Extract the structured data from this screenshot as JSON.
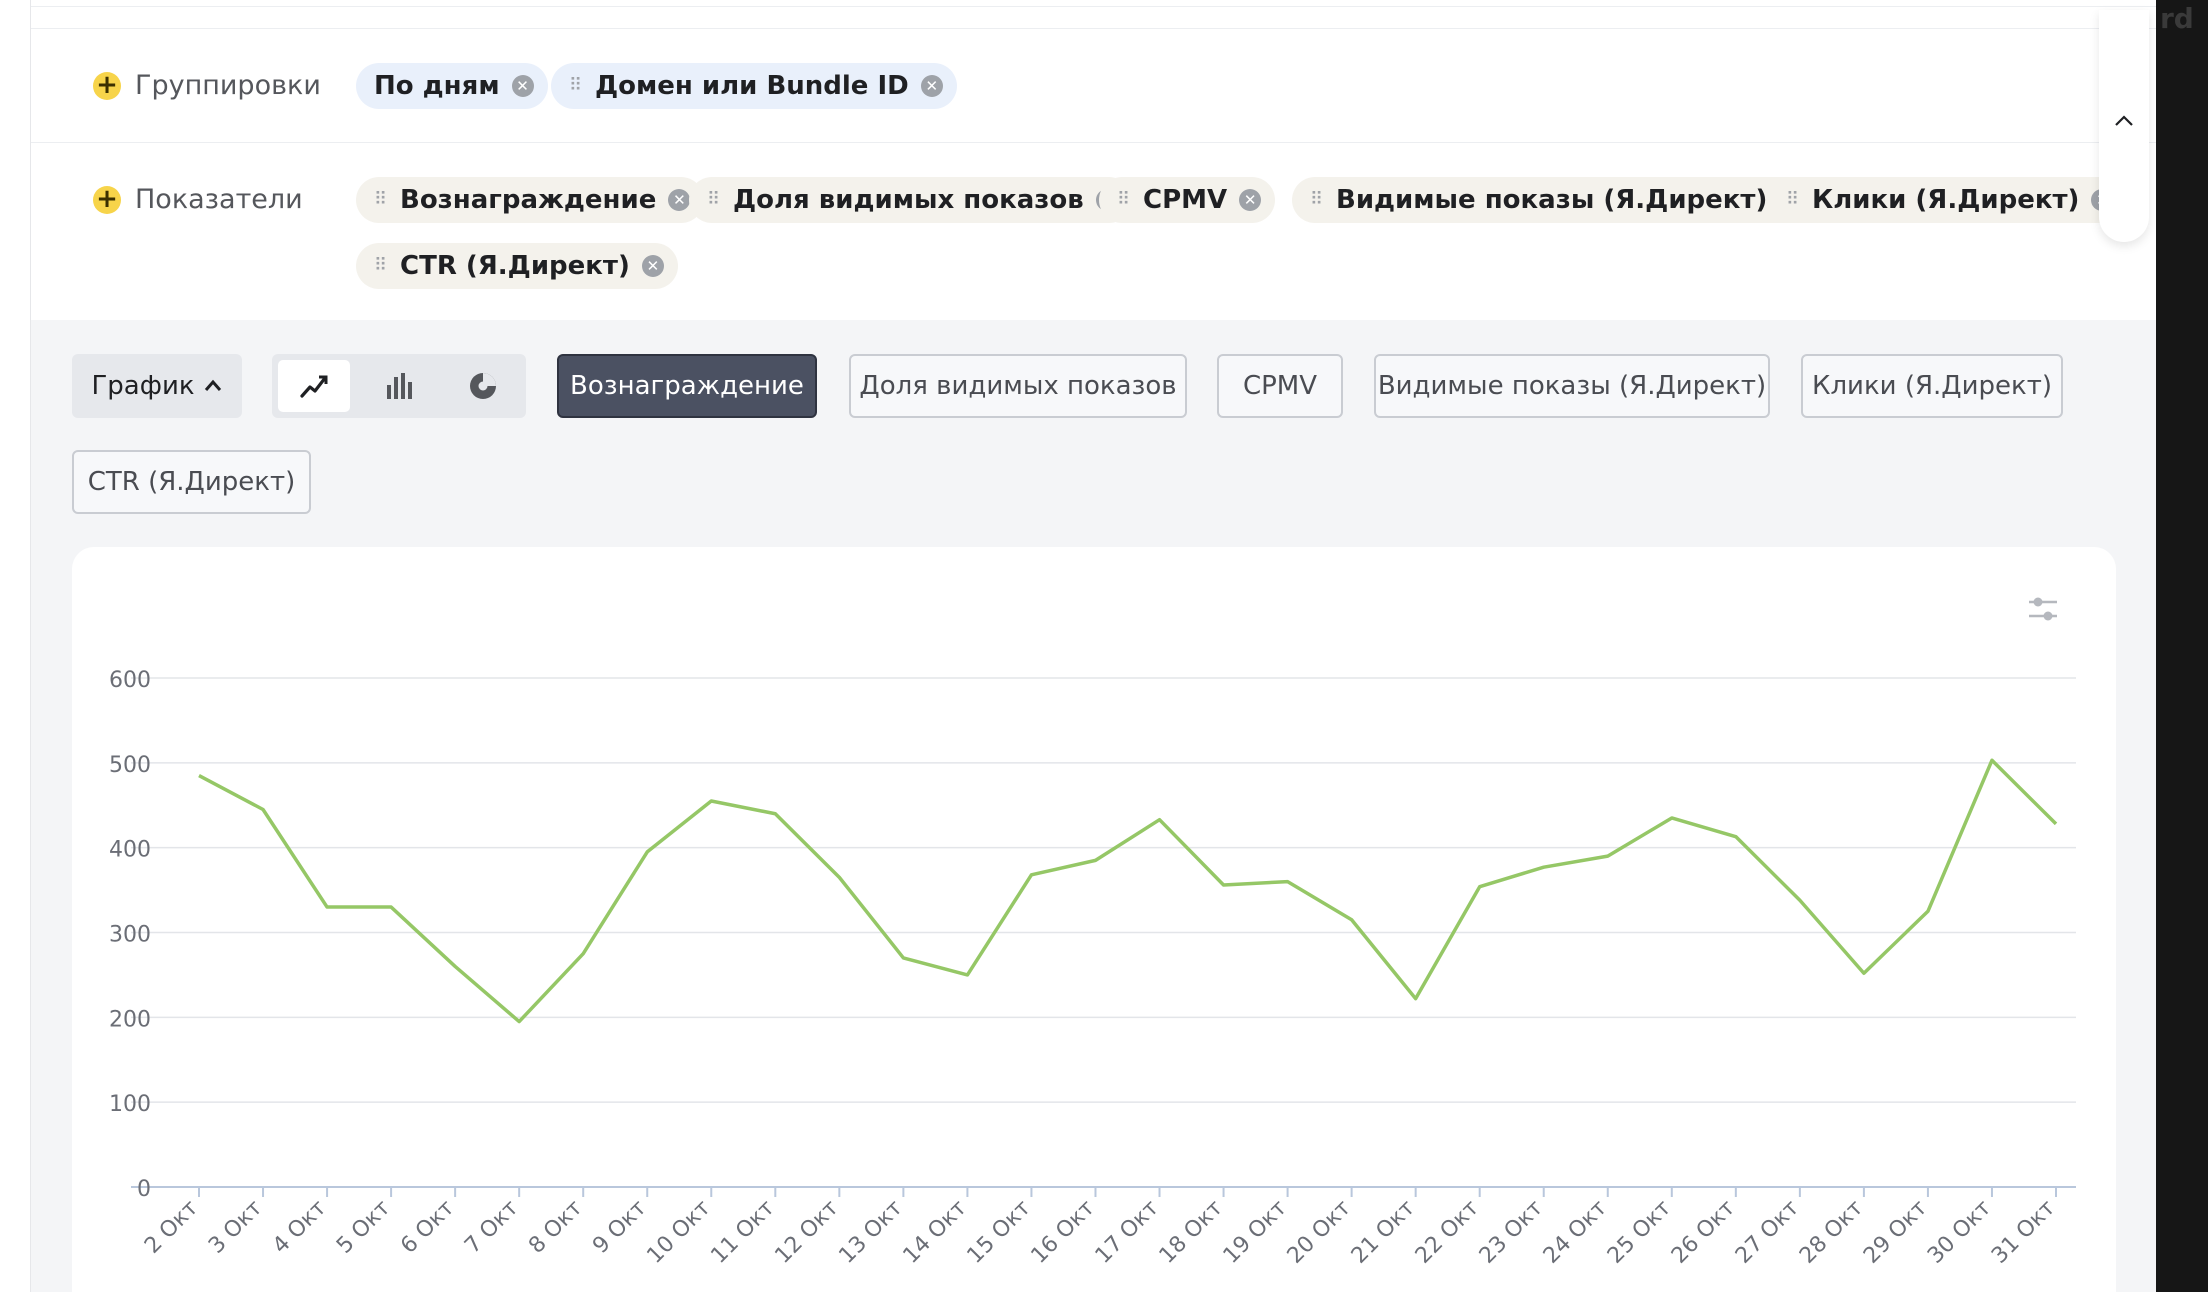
{
  "groupings": {
    "label": "Группировки",
    "chips": [
      "По дням",
      "Домен или Bundle ID"
    ]
  },
  "metrics": {
    "label": "Показатели",
    "chips": [
      "Вознаграждение",
      "Доля видимых показов",
      "CPMV",
      "Видимые показы (Я.Директ)",
      "Клики (Я.Директ)",
      "CTR (Я.Директ)"
    ]
  },
  "toolbar": {
    "graph_label": "График",
    "chart_types": [
      "line-chart-icon",
      "bar-chart-icon",
      "pie-chart-icon"
    ],
    "selected_type": "line",
    "metric_buttons": [
      "Вознаграждение",
      "Доля видимых показов",
      "CPMV",
      "Видимые показы (Я.Директ)",
      "Клики (Я.Директ)",
      "CTR (Я.Директ)"
    ],
    "active_metric": "Вознаграждение"
  },
  "partial_text_right": "rd",
  "colors": {
    "line": "#95c766",
    "accent_yellow": "#f7d44a",
    "active_button": "#4b5162"
  },
  "chart_data": {
    "type": "line",
    "categories": [
      "2 Окт",
      "3 Окт",
      "4 Окт",
      "5 Окт",
      "6 Окт",
      "7 Окт",
      "8 Окт",
      "9 Окт",
      "10 Окт",
      "11 Окт",
      "12 Окт",
      "13 Окт",
      "14 Окт",
      "15 Окт",
      "16 Окт",
      "17 Окт",
      "18 Окт",
      "19 Окт",
      "20 Окт",
      "21 Окт",
      "22 Окт",
      "23 Окт",
      "24 Окт",
      "25 Окт",
      "26 Окт",
      "27 Окт",
      "28 Окт",
      "29 Окт",
      "30 Окт",
      "31 Окт"
    ],
    "series": [
      {
        "values": [
          485,
          445,
          330,
          330,
          260,
          195,
          275,
          395,
          455,
          440,
          365,
          270,
          250,
          368,
          385,
          433,
          356,
          360,
          315,
          222,
          354,
          377,
          390,
          435,
          413,
          338,
          252,
          325,
          503,
          428
        ]
      }
    ],
    "ylim": [
      0,
      600
    ],
    "yticks": [
      0,
      100,
      200,
      300,
      400,
      500,
      600
    ],
    "grid": true
  }
}
